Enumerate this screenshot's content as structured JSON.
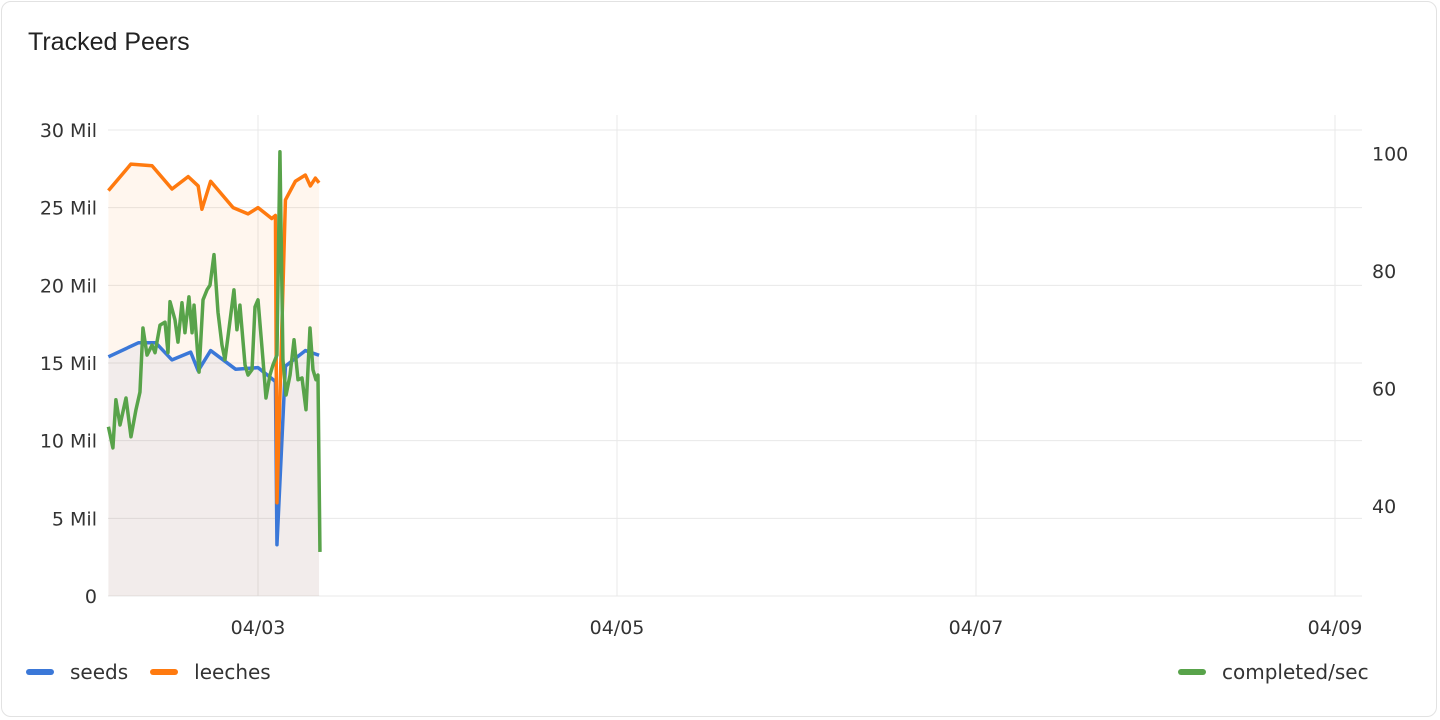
{
  "title": "Tracked Peers",
  "colors": {
    "seeds": "#3b78d8",
    "leeches": "#ff7a0f",
    "completed": "#58a34a"
  },
  "chart_data": {
    "type": "line",
    "title": "Tracked Peers",
    "x_ticks": [
      "04/03",
      "04/05",
      "04/07",
      "04/09"
    ],
    "x_range": [
      "04/02 04:00",
      "04/09 03:30"
    ],
    "y_left": {
      "ticks": [
        "0",
        "5 Mil",
        "10 Mil",
        "15 Mil",
        "20 Mil",
        "25 Mil",
        "30 Mil"
      ],
      "tick_values": [
        0,
        5,
        10,
        15,
        20,
        25,
        30
      ],
      "range": [
        0,
        30
      ],
      "unit": "Mil"
    },
    "y_right": {
      "ticks": [
        "40",
        "60",
        "80",
        "100"
      ],
      "tick_values": [
        40,
        60,
        80,
        100
      ],
      "range": [
        24.7,
        104
      ]
    },
    "grid": true,
    "legend": {
      "left": [
        "seeds",
        "leeches"
      ],
      "right": [
        "completed/sec"
      ],
      "placement": "bottom"
    },
    "series": [
      {
        "name": "seeds",
        "axis": "left",
        "area": true,
        "points": [
          [
            "04/02 04:00",
            15.4
          ],
          [
            "04/02 08:00",
            16.3
          ],
          [
            "04/02 10:20",
            16.3
          ],
          [
            "04/02 12:30",
            15.2
          ],
          [
            "04/02 15:00",
            15.7
          ],
          [
            "04/02 16:00",
            14.5
          ],
          [
            "04/02 17:40",
            15.8
          ],
          [
            "04/02 21:00",
            14.6
          ],
          [
            "04/03 00:00",
            14.7
          ],
          [
            "04/03 01:50",
            14.0
          ],
          [
            "04/03 02:20",
            13.8
          ],
          [
            "04/03 02:32",
            3.3
          ],
          [
            "04/03 03:40",
            14.8
          ],
          [
            "04/03 06:20",
            15.8
          ],
          [
            "04/03 08:10",
            15.5
          ]
        ]
      },
      {
        "name": "leeches",
        "axis": "left",
        "area": true,
        "points": [
          [
            "04/02 04:00",
            26.1
          ],
          [
            "04/02 07:00",
            27.8
          ],
          [
            "04/02 09:50",
            27.7
          ],
          [
            "04/02 12:30",
            26.2
          ],
          [
            "04/02 14:40",
            27.0
          ],
          [
            "04/02 16:00",
            26.4
          ],
          [
            "04/02 16:30",
            24.9
          ],
          [
            "04/02 17:40",
            26.7
          ],
          [
            "04/02 20:40",
            25.0
          ],
          [
            "04/02 22:40",
            24.6
          ],
          [
            "04/03 00:00",
            25.0
          ],
          [
            "04/03 01:50",
            24.3
          ],
          [
            "04/03 02:20",
            24.5
          ],
          [
            "04/03 02:32",
            6.0
          ],
          [
            "04/03 03:40",
            25.5
          ],
          [
            "04/03 05:00",
            26.7
          ],
          [
            "04/03 06:20",
            27.1
          ],
          [
            "04/03 07:00",
            26.4
          ],
          [
            "04/03 07:40",
            26.9
          ],
          [
            "04/03 08:10",
            26.6
          ]
        ]
      },
      {
        "name": "completed/sec",
        "axis": "right",
        "area": false,
        "points": [
          [
            "04/02 04:00",
            53.5
          ],
          [
            "04/02 04:36",
            49.9
          ],
          [
            "04/02 05:00",
            58.1
          ],
          [
            "04/02 05:33",
            53.8
          ],
          [
            "04/02 06:21",
            58.4
          ],
          [
            "04/02 07:01",
            51.8
          ],
          [
            "04/02 07:41",
            56.4
          ],
          [
            "04/02 08:13",
            59.4
          ],
          [
            "04/02 08:37",
            70.3
          ],
          [
            "04/02 09:10",
            65.7
          ],
          [
            "04/02 09:50",
            67.4
          ],
          [
            "04/02 10:14",
            66.1
          ],
          [
            "04/02 10:54",
            70.8
          ],
          [
            "04/02 11:34",
            71.3
          ],
          [
            "04/02 11:58",
            66.1
          ],
          [
            "04/02 12:14",
            74.8
          ],
          [
            "04/02 12:54",
            71.7
          ],
          [
            "04/02 13:18",
            67.9
          ],
          [
            "04/02 13:50",
            74.6
          ],
          [
            "04/02 14:14",
            69.5
          ],
          [
            "04/02 14:46",
            75.6
          ],
          [
            "04/02 15:11",
            69.5
          ],
          [
            "04/02 15:27",
            74.2
          ],
          [
            "04/02 16:07",
            62.8
          ],
          [
            "04/02 16:39",
            75.1
          ],
          [
            "04/02 17:11",
            76.8
          ],
          [
            "04/02 17:35",
            77.6
          ],
          [
            "04/02 18:07",
            82.8
          ],
          [
            "04/02 18:39",
            73.0
          ],
          [
            "04/02 19:11",
            67.4
          ],
          [
            "04/02 19:35",
            64.9
          ],
          [
            "04/02 19:59",
            68.8
          ],
          [
            "04/02 20:47",
            76.8
          ],
          [
            "04/02 21:11",
            70.0
          ],
          [
            "04/02 21:35",
            74.2
          ],
          [
            "04/02 22:16",
            64.0
          ],
          [
            "04/02 22:40",
            62.3
          ],
          [
            "04/02 23:12",
            63.2
          ],
          [
            "04/02 23:36",
            73.9
          ],
          [
            "04/03 00:00",
            75.1
          ],
          [
            "04/03 00:40",
            64.9
          ],
          [
            "04/03 01:04",
            58.4
          ],
          [
            "04/03 01:36",
            62.3
          ],
          [
            "04/03 02:00",
            64.0
          ],
          [
            "04/03 02:32",
            65.7
          ],
          [
            "04/03 02:56",
            100.3
          ],
          [
            "04/03 03:20",
            64.9
          ],
          [
            "04/03 03:45",
            58.9
          ],
          [
            "04/03 04:17",
            62.3
          ],
          [
            "04/03 04:49",
            68.3
          ],
          [
            "04/03 05:21",
            61.5
          ],
          [
            "04/03 05:53",
            61.8
          ],
          [
            "04/03 06:25",
            56.4
          ],
          [
            "04/03 06:57",
            70.3
          ],
          [
            "04/03 07:21",
            63.2
          ],
          [
            "04/03 07:45",
            61.5
          ],
          [
            "04/03 08:01",
            62.3
          ],
          [
            "04/03 08:17",
            32.2
          ]
        ]
      }
    ]
  }
}
